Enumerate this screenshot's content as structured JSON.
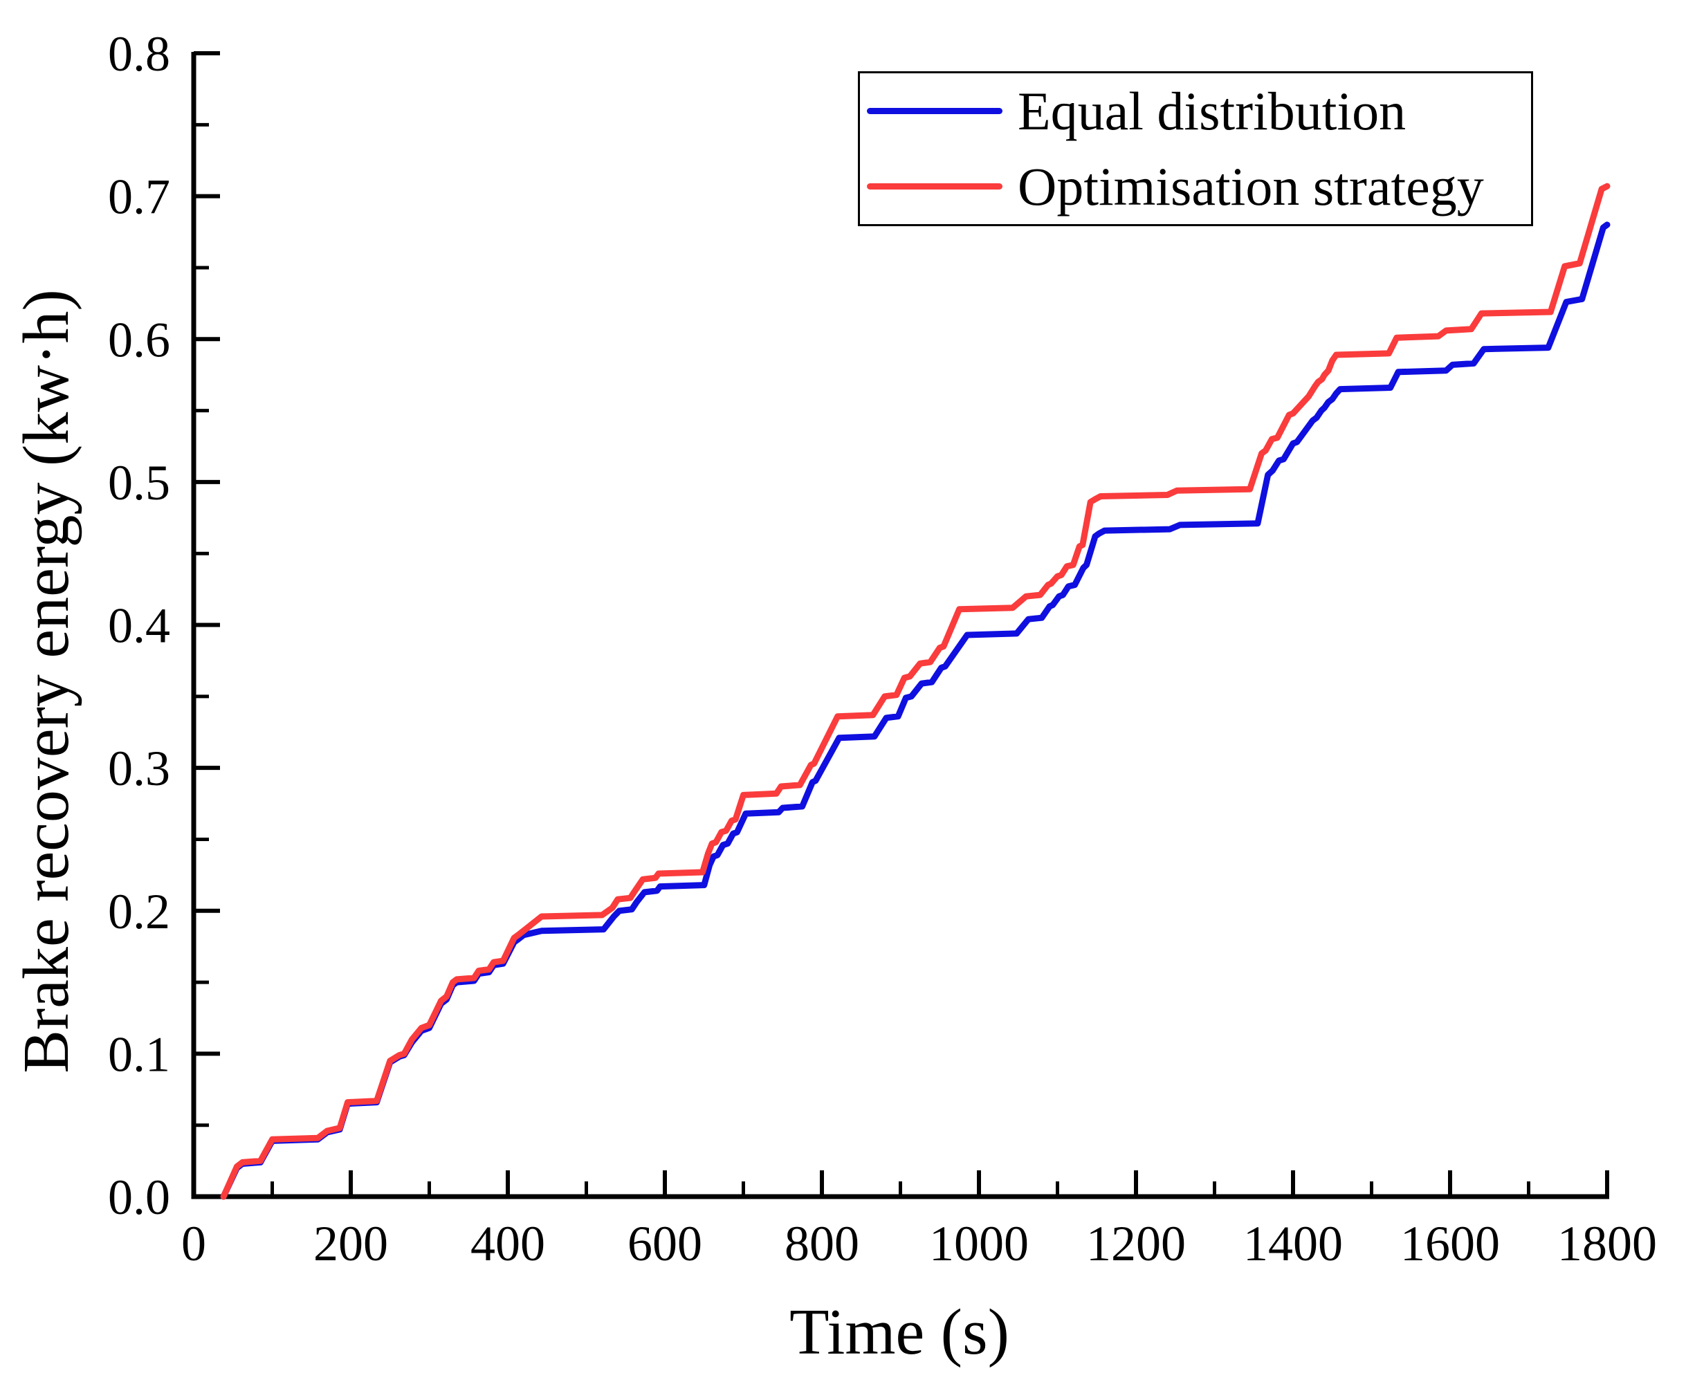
{
  "chart_data": {
    "type": "line",
    "title": "",
    "xlabel": "Time (s)",
    "ylabel": "Brake recovery energy (kw·h)",
    "xlim": [
      0,
      1800
    ],
    "ylim": [
      0.0,
      0.8
    ],
    "grid": false,
    "legend_position": "upper-right-inside",
    "x_major_tick_interval": 200,
    "x_minor_tick_interval": 100,
    "y_major_tick_interval": 0.1,
    "y_minor_tick_interval": 0.05,
    "x_tick_labels": [
      "0",
      "200",
      "400",
      "600",
      "800",
      "1000",
      "1200",
      "1400",
      "1600",
      "1800"
    ],
    "y_tick_labels": [
      "0.0",
      "0.1",
      "0.2",
      "0.3",
      "0.4",
      "0.5",
      "0.6",
      "0.7",
      "0.8"
    ],
    "series": [
      {
        "name": "Equal distribution",
        "color": "#0f0fe0",
        "points": [
          [
            38,
            0
          ],
          [
            55,
            0.02
          ],
          [
            62,
            0.023
          ],
          [
            85,
            0.024
          ],
          [
            100,
            0.039
          ],
          [
            158,
            0.04
          ],
          [
            170,
            0.045
          ],
          [
            186,
            0.047
          ],
          [
            196,
            0.065
          ],
          [
            233,
            0.066
          ],
          [
            250,
            0.094
          ],
          [
            262,
            0.098
          ],
          [
            268,
            0.099
          ],
          [
            278,
            0.108
          ],
          [
            290,
            0.116
          ],
          [
            300,
            0.118
          ],
          [
            315,
            0.135
          ],
          [
            322,
            0.138
          ],
          [
            330,
            0.148
          ],
          [
            335,
            0.15
          ],
          [
            357,
            0.151
          ],
          [
            363,
            0.156
          ],
          [
            376,
            0.157
          ],
          [
            382,
            0.162
          ],
          [
            394,
            0.163
          ],
          [
            408,
            0.178
          ],
          [
            413,
            0.18
          ],
          [
            420,
            0.183
          ],
          [
            443,
            0.186
          ],
          [
            522,
            0.187
          ],
          [
            535,
            0.196
          ],
          [
            542,
            0.2
          ],
          [
            558,
            0.201
          ],
          [
            564,
            0.206
          ],
          [
            574,
            0.213
          ],
          [
            590,
            0.214
          ],
          [
            594,
            0.217
          ],
          [
            650,
            0.218
          ],
          [
            657,
            0.232
          ],
          [
            662,
            0.238
          ],
          [
            667,
            0.239
          ],
          [
            674,
            0.246
          ],
          [
            680,
            0.247
          ],
          [
            687,
            0.254
          ],
          [
            692,
            0.255
          ],
          [
            703,
            0.268
          ],
          [
            745,
            0.269
          ],
          [
            750,
            0.272
          ],
          [
            775,
            0.273
          ],
          [
            788,
            0.29
          ],
          [
            792,
            0.291
          ],
          [
            822,
            0.321
          ],
          [
            867,
            0.322
          ],
          [
            882,
            0.335
          ],
          [
            897,
            0.336
          ],
          [
            907,
            0.349
          ],
          [
            914,
            0.35
          ],
          [
            927,
            0.359
          ],
          [
            940,
            0.36
          ],
          [
            952,
            0.37
          ],
          [
            957,
            0.371
          ],
          [
            985,
            0.393
          ],
          [
            1048,
            0.394
          ],
          [
            1063,
            0.404
          ],
          [
            1080,
            0.405
          ],
          [
            1090,
            0.413
          ],
          [
            1094,
            0.414
          ],
          [
            1102,
            0.42
          ],
          [
            1107,
            0.421
          ],
          [
            1114,
            0.427
          ],
          [
            1122,
            0.428
          ],
          [
            1133,
            0.44
          ],
          [
            1137,
            0.442
          ],
          [
            1148,
            0.462
          ],
          [
            1153,
            0.464
          ],
          [
            1160,
            0.466
          ],
          [
            1243,
            0.467
          ],
          [
            1256,
            0.47
          ],
          [
            1355,
            0.471
          ],
          [
            1368,
            0.505
          ],
          [
            1374,
            0.508
          ],
          [
            1382,
            0.515
          ],
          [
            1388,
            0.516
          ],
          [
            1400,
            0.527
          ],
          [
            1405,
            0.528
          ],
          [
            1425,
            0.543
          ],
          [
            1430,
            0.545
          ],
          [
            1436,
            0.55
          ],
          [
            1440,
            0.552
          ],
          [
            1445,
            0.556
          ],
          [
            1450,
            0.558
          ],
          [
            1455,
            0.562
          ],
          [
            1460,
            0.565
          ],
          [
            1524,
            0.566
          ],
          [
            1534,
            0.577
          ],
          [
            1595,
            0.578
          ],
          [
            1603,
            0.582
          ],
          [
            1630,
            0.583
          ],
          [
            1643,
            0.593
          ],
          [
            1725,
            0.594
          ],
          [
            1748,
            0.626
          ],
          [
            1768,
            0.628
          ],
          [
            1795,
            0.678
          ],
          [
            1800,
            0.68
          ]
        ]
      },
      {
        "name": "Optimisation strategy",
        "color": "#fa3c3c",
        "points": [
          [
            38,
            0
          ],
          [
            55,
            0.021
          ],
          [
            62,
            0.024
          ],
          [
            85,
            0.025
          ],
          [
            100,
            0.04
          ],
          [
            158,
            0.041
          ],
          [
            170,
            0.046
          ],
          [
            186,
            0.048
          ],
          [
            196,
            0.066
          ],
          [
            233,
            0.067
          ],
          [
            250,
            0.095
          ],
          [
            262,
            0.099
          ],
          [
            268,
            0.1
          ],
          [
            278,
            0.11
          ],
          [
            290,
            0.118
          ],
          [
            300,
            0.12
          ],
          [
            315,
            0.137
          ],
          [
            322,
            0.14
          ],
          [
            330,
            0.15
          ],
          [
            335,
            0.152
          ],
          [
            357,
            0.153
          ],
          [
            363,
            0.158
          ],
          [
            376,
            0.159
          ],
          [
            382,
            0.164
          ],
          [
            394,
            0.165
          ],
          [
            408,
            0.181
          ],
          [
            413,
            0.183
          ],
          [
            420,
            0.186
          ],
          [
            443,
            0.196
          ],
          [
            520,
            0.197
          ],
          [
            533,
            0.202
          ],
          [
            540,
            0.208
          ],
          [
            556,
            0.209
          ],
          [
            562,
            0.214
          ],
          [
            572,
            0.222
          ],
          [
            588,
            0.223
          ],
          [
            592,
            0.226
          ],
          [
            648,
            0.227
          ],
          [
            655,
            0.24
          ],
          [
            660,
            0.247
          ],
          [
            665,
            0.248
          ],
          [
            672,
            0.255
          ],
          [
            678,
            0.256
          ],
          [
            685,
            0.263
          ],
          [
            690,
            0.264
          ],
          [
            700,
            0.281
          ],
          [
            742,
            0.282
          ],
          [
            748,
            0.287
          ],
          [
            772,
            0.288
          ],
          [
            786,
            0.302
          ],
          [
            790,
            0.303
          ],
          [
            820,
            0.336
          ],
          [
            865,
            0.337
          ],
          [
            880,
            0.35
          ],
          [
            895,
            0.351
          ],
          [
            905,
            0.363
          ],
          [
            912,
            0.364
          ],
          [
            925,
            0.373
          ],
          [
            938,
            0.374
          ],
          [
            950,
            0.384
          ],
          [
            955,
            0.385
          ],
          [
            975,
            0.411
          ],
          [
            1043,
            0.412
          ],
          [
            1060,
            0.42
          ],
          [
            1078,
            0.421
          ],
          [
            1088,
            0.428
          ],
          [
            1092,
            0.429
          ],
          [
            1100,
            0.434
          ],
          [
            1105,
            0.435
          ],
          [
            1112,
            0.441
          ],
          [
            1120,
            0.442
          ],
          [
            1128,
            0.455
          ],
          [
            1132,
            0.456
          ],
          [
            1142,
            0.486
          ],
          [
            1148,
            0.488
          ],
          [
            1155,
            0.49
          ],
          [
            1240,
            0.491
          ],
          [
            1252,
            0.494
          ],
          [
            1345,
            0.495
          ],
          [
            1360,
            0.52
          ],
          [
            1365,
            0.522
          ],
          [
            1373,
            0.53
          ],
          [
            1380,
            0.531
          ],
          [
            1395,
            0.547
          ],
          [
            1400,
            0.548
          ],
          [
            1420,
            0.56
          ],
          [
            1428,
            0.567
          ],
          [
            1432,
            0.57
          ],
          [
            1437,
            0.572
          ],
          [
            1440,
            0.575
          ],
          [
            1445,
            0.578
          ],
          [
            1450,
            0.585
          ],
          [
            1455,
            0.589
          ],
          [
            1522,
            0.59
          ],
          [
            1532,
            0.601
          ],
          [
            1585,
            0.602
          ],
          [
            1595,
            0.606
          ],
          [
            1627,
            0.607
          ],
          [
            1640,
            0.618
          ],
          [
            1728,
            0.619
          ],
          [
            1746,
            0.651
          ],
          [
            1765,
            0.653
          ],
          [
            1793,
            0.705
          ],
          [
            1800,
            0.707
          ]
        ]
      }
    ]
  },
  "legend": {
    "items": [
      {
        "label": "Equal distribution",
        "color": "#0f0fe0"
      },
      {
        "label": "Optimisation strategy",
        "color": "#fa3c3c"
      }
    ]
  },
  "axes": {
    "x_title": "Time (s)",
    "y_title": "Brake recovery energy (kw·h)"
  }
}
